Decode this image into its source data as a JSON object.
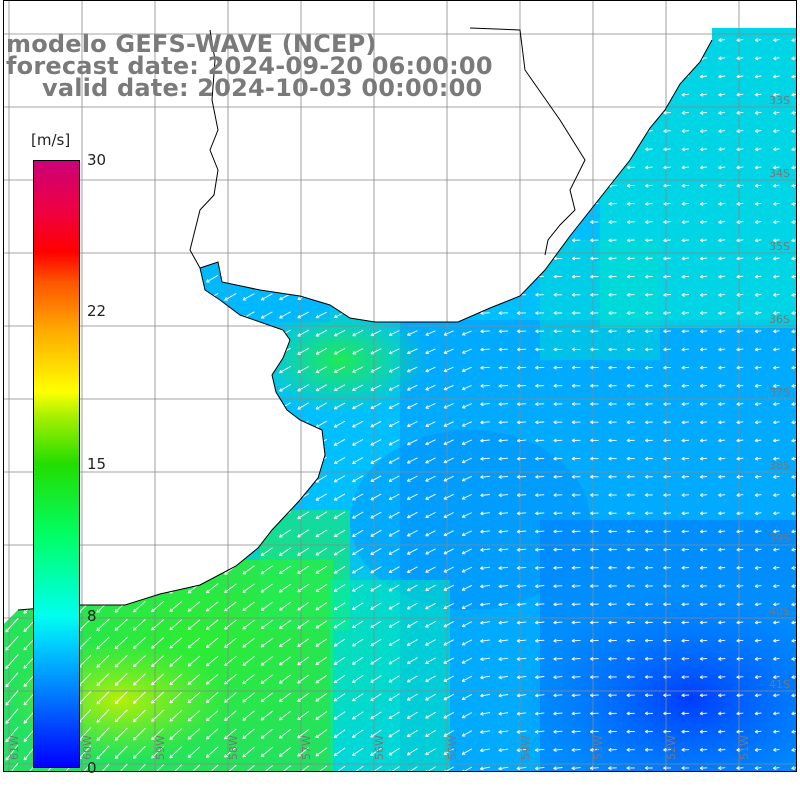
{
  "title": {
    "line1": "modelo GEFS-WAVE (NCEP)",
    "line2": "forecast date: 2024-09-20 06:00:00",
    "line3": "valid date: 2024-10-03 00:00:00"
  },
  "colorbar": {
    "unit": "[m/s]",
    "ticks": [
      "30",
      "22",
      "15",
      "8",
      "0"
    ],
    "colors": [
      "#0000ff",
      "#00ccff",
      "#00ffee",
      "#22dd00",
      "#ffff00",
      "#ff5500",
      "#ff0000",
      "#cc0077"
    ]
  },
  "map": {
    "lat_labels": [
      "33S",
      "34S",
      "35S",
      "36S",
      "37S",
      "38S",
      "39S",
      "40S",
      "41S"
    ],
    "lon_labels": [
      "61W",
      "60W",
      "59W",
      "58W",
      "57W",
      "56W",
      "55W",
      "54W",
      "53W",
      "52W",
      "51W"
    ],
    "land_color": "#ffffff",
    "coast_color": "#000000",
    "grid_color": "#888888",
    "wind_arrow_color": "#ffffff"
  }
}
